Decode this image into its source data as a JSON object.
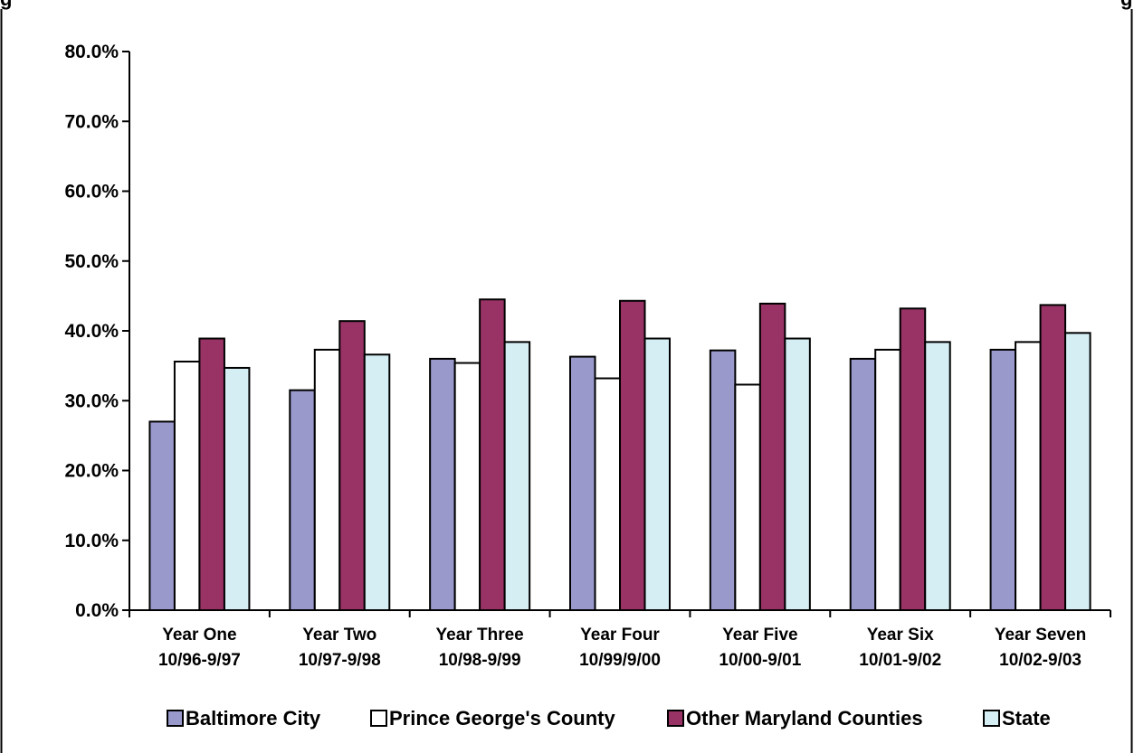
{
  "header": {
    "title_fragment": "g",
    "title_fragment_right": "g"
  },
  "colors": {
    "frame": "#000000",
    "series": [
      "#9999cc",
      "#ffffff",
      "#993366",
      "#d4eef4"
    ]
  },
  "chart_data": {
    "type": "bar",
    "categories": [
      [
        "Year One",
        "10/96-9/97"
      ],
      [
        "Year Two",
        "10/97-9/98"
      ],
      [
        "Year Three",
        "10/98-9/99"
      ],
      [
        "Year Four",
        "10/99/9/00"
      ],
      [
        "Year Five",
        "10/00-9/01"
      ],
      [
        "Year Six",
        "10/01-9/02"
      ],
      [
        "Year Seven",
        "10/02-9/03"
      ]
    ],
    "series": [
      {
        "name": "Baltimore City",
        "values": [
          27.0,
          31.5,
          36.0,
          36.3,
          37.2,
          36.0,
          37.3
        ]
      },
      {
        "name": "Prince George's County",
        "values": [
          35.6,
          37.3,
          35.4,
          33.2,
          32.3,
          37.3,
          38.4
        ]
      },
      {
        "name": "Other Maryland Counties",
        "values": [
          38.9,
          41.4,
          44.5,
          44.3,
          43.9,
          43.2,
          43.7
        ]
      },
      {
        "name": "State",
        "values": [
          34.7,
          36.6,
          38.4,
          38.9,
          38.9,
          38.4,
          39.7
        ]
      }
    ],
    "ylim": [
      0,
      80
    ],
    "yticks": [
      "0.0%",
      "10.0%",
      "20.0%",
      "30.0%",
      "40.0%",
      "50.0%",
      "60.0%",
      "70.0%",
      "80.0%"
    ],
    "grid": false,
    "legend_position": "bottom"
  }
}
